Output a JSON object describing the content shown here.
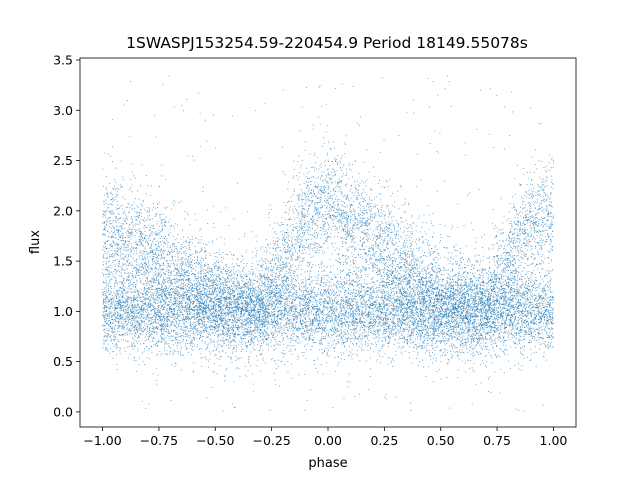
{
  "chart_data": {
    "type": "scatter",
    "title": "1SWASPJ153254.59-220454.9 Period 18149.55078s",
    "xlabel": "phase",
    "ylabel": "flux",
    "xlim": [
      -1.1,
      1.1
    ],
    "ylim": [
      -0.15,
      3.52
    ],
    "grid": false,
    "legend": "none",
    "point_color": "#1f77b4",
    "xticks": [
      -1.0,
      -0.75,
      -0.5,
      -0.25,
      0.0,
      0.25,
      0.5,
      0.75,
      1.0
    ],
    "xtick_labels": [
      "−1.00",
      "−0.75",
      "−0.50",
      "−0.25",
      "0.00",
      "0.25",
      "0.50",
      "0.75",
      "1.00"
    ],
    "yticks": [
      0.0,
      0.5,
      1.0,
      1.5,
      2.0,
      2.5,
      3.0,
      3.5
    ],
    "ytick_labels": [
      "0.0",
      "0.5",
      "1.0",
      "1.5",
      "2.0",
      "2.5",
      "3.0",
      "3.5"
    ],
    "series": [
      {
        "phase": [
          -1.0,
          -0.9,
          -0.8,
          -0.7,
          -0.6,
          -0.5,
          -0.4,
          -0.3,
          -0.2,
          -0.1,
          0.0,
          0.1,
          0.2,
          0.3,
          0.4,
          0.5,
          0.6,
          0.7,
          0.8,
          0.9,
          1.0
        ],
        "upper_branch_flux": [
          1.8,
          1.72,
          1.6,
          1.45,
          1.3,
          1.15,
          1.05,
          1.05,
          1.5,
          1.95,
          2.1,
          1.9,
          1.7,
          1.5,
          1.3,
          1.15,
          1.05,
          1.05,
          1.5,
          1.9,
          2.0
        ],
        "lower_branch_flux": [
          1.0,
          1.0,
          1.0,
          1.0,
          1.0,
          1.0,
          1.0,
          1.0,
          1.0,
          1.0,
          1.0,
          1.0,
          1.0,
          1.0,
          1.0,
          1.0,
          1.0,
          1.0,
          1.0,
          1.0,
          1.0
        ],
        "flux_min": 0.0,
        "flux_max": 3.35
      }
    ]
  }
}
